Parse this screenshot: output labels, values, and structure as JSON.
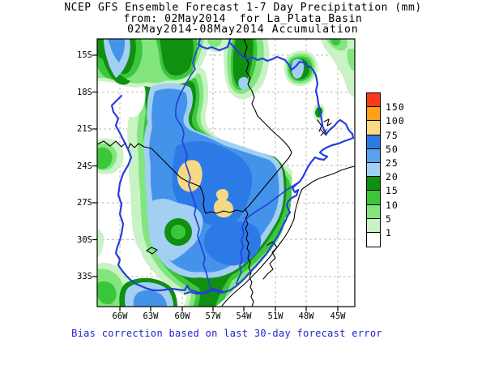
{
  "title": {
    "line1": "NCEP GFS Ensemble Forecast 1-7 Day Precipitation (mm)",
    "line2": "from: 02May2014  for La_Plata_Basin",
    "line3": "02May2014-08May2014 Accumulation"
  },
  "caption": "Bias correction based on last 30-day forecast error",
  "axes": {
    "lat_labels": [
      "15S",
      "18S",
      "21S",
      "24S",
      "27S",
      "30S",
      "33S"
    ],
    "lon_labels": [
      "66W",
      "63W",
      "60W",
      "57W",
      "54W",
      "51W",
      "48W",
      "45W"
    ]
  },
  "colorbar": {
    "labels": [
      "150",
      "100",
      "75",
      "50",
      "25",
      "20",
      "15",
      "10",
      "5",
      "1"
    ],
    "segment_colors": [
      "#F93A1C",
      "#FFA016",
      "#F8DB82",
      "#2C7AE6",
      "#5CA2EE",
      "#A3CFF2",
      "#108F10",
      "#3CC63C",
      "#82E57E",
      "#C9F2C5",
      "#FFFFFF"
    ]
  },
  "palette": {
    "paleGreen": "#C9F2C5",
    "lightGreen": "#82E57E",
    "mediumGreen": "#3CC63C",
    "darkGreen": "#108F10",
    "lightBlue": "#A3CFF2",
    "mediumBlue": "#4493EA",
    "strongBlue": "#2C7AE6",
    "gold": "#F5D985",
    "orange": "#FFA016",
    "red": "#F93A1C",
    "white": "#FFFFFF",
    "river": "#2540DC",
    "border": "#000000",
    "grid": "#BBBBBB",
    "caption_blue": "#2222CC"
  }
}
